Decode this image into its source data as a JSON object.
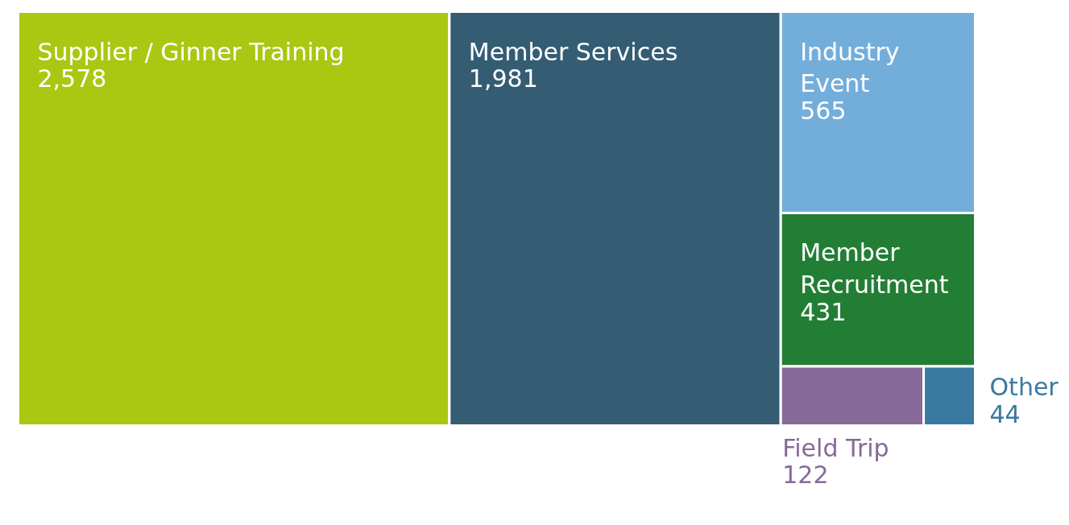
{
  "chart_data": {
    "type": "other",
    "categories": [
      "Supplier / Ginner Training",
      "Member Services",
      "Industry Event",
      "Member Recruitment",
      "Field Trip",
      "Other"
    ],
    "values": [
      2578,
      1981,
      565,
      431,
      122,
      44
    ],
    "colors": [
      "#aac712",
      "#345d73",
      "#73aedb",
      "#237e35",
      "#876a9a",
      "#3b7aa0"
    ],
    "value_labels": [
      "2,578",
      "1,981",
      "565",
      "431",
      "122",
      "44"
    ]
  }
}
